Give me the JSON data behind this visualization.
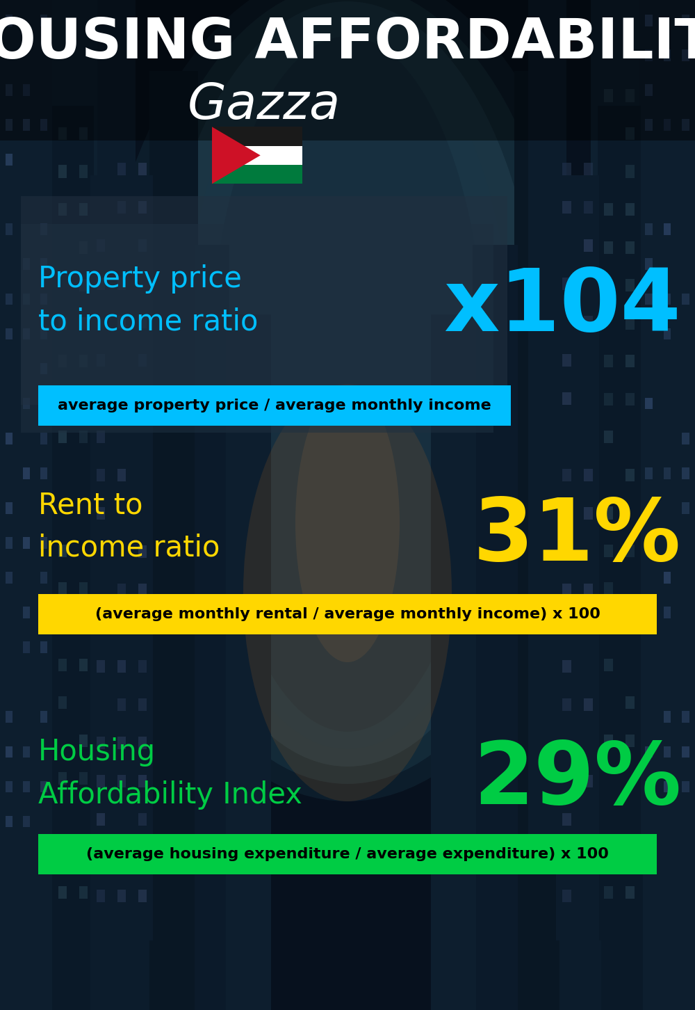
{
  "title": "HOUSING AFFORDABILITY",
  "subtitle": "Gazza",
  "section1_label": "Property price\nto income ratio",
  "section1_value": "x104",
  "section1_label_color": "#00BFFF",
  "section1_value_color": "#00BFFF",
  "section1_banner": "average property price / average monthly income",
  "section1_banner_bg": "#00BFFF",
  "section1_banner_text_color": "#000000",
  "section2_label": "Rent to\nincome ratio",
  "section2_value": "31%",
  "section2_label_color": "#FFD700",
  "section2_value_color": "#FFD700",
  "section2_banner": "(average monthly rental / average monthly income) x 100",
  "section2_banner_bg": "#FFD700",
  "section2_banner_text_color": "#000000",
  "section3_label": "Housing\nAffordability Index",
  "section3_value": "29%",
  "section3_label_color": "#00CC44",
  "section3_value_color": "#00CC44",
  "section3_banner": "(average housing expenditure / average expenditure) x 100",
  "section3_banner_bg": "#00CC44",
  "section3_banner_text_color": "#000000",
  "bg_color": "#07111e",
  "title_color": "#FFFFFF",
  "subtitle_color": "#FFFFFF",
  "title_fontsize": 58,
  "subtitle_fontsize": 52,
  "label_fontsize": 30,
  "value_fontsize": 90,
  "banner_fontsize": 16
}
